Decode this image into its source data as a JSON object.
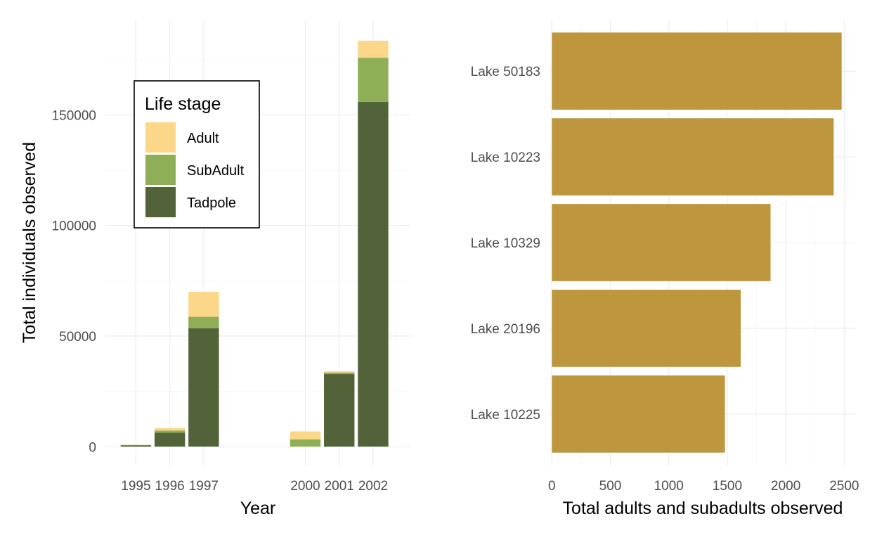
{
  "chart_data": [
    {
      "type": "bar",
      "stacked": true,
      "xlabel": "Year",
      "ylabel": "Total individuals observed",
      "x": [
        1995,
        1996,
        1997,
        2000,
        2001,
        2002
      ],
      "x_tick_labels": [
        "1995",
        "1996",
        "1997",
        "2000",
        "2001",
        "2002"
      ],
      "y_ticks": [
        0,
        50000,
        100000,
        150000
      ],
      "y_tick_labels": [
        "0",
        "50000",
        "100000",
        "150000"
      ],
      "ylim": [
        -8500,
        193000
      ],
      "xlim": [
        1994.1,
        2003.1
      ],
      "grid": true,
      "legend": {
        "title": "Life stage",
        "position": "inside-top-left",
        "entries": [
          "Adult",
          "SubAdult",
          "Tadpole"
        ]
      },
      "series": [
        {
          "name": "Tadpole",
          "color": "#526339",
          "values": [
            600,
            6300,
            53500,
            0,
            32800,
            155800
          ]
        },
        {
          "name": "SubAdult",
          "color": "#8faf57",
          "values": [
            200,
            1000,
            5200,
            3300,
            700,
            20000
          ]
        },
        {
          "name": "Adult",
          "color": "#fdd789",
          "values": [
            100,
            1100,
            11300,
            3600,
            600,
            7700
          ]
        }
      ]
    },
    {
      "type": "bar",
      "orientation": "horizontal",
      "xlabel": "Total adults and subadults observed",
      "ylabel": "",
      "categories": [
        "Lake 50183",
        "Lake 10223",
        "Lake 10329",
        "Lake 20196",
        "Lake 10225"
      ],
      "values": [
        2478,
        2410,
        1870,
        1615,
        1480
      ],
      "color": "#bd963e",
      "x_ticks": [
        0,
        500,
        1000,
        1500,
        2000,
        2500
      ],
      "x_tick_labels": [
        "0",
        "500",
        "1000",
        "1500",
        "2000",
        "2500"
      ],
      "xlim": [
        -20,
        2600
      ],
      "grid": true
    }
  ]
}
